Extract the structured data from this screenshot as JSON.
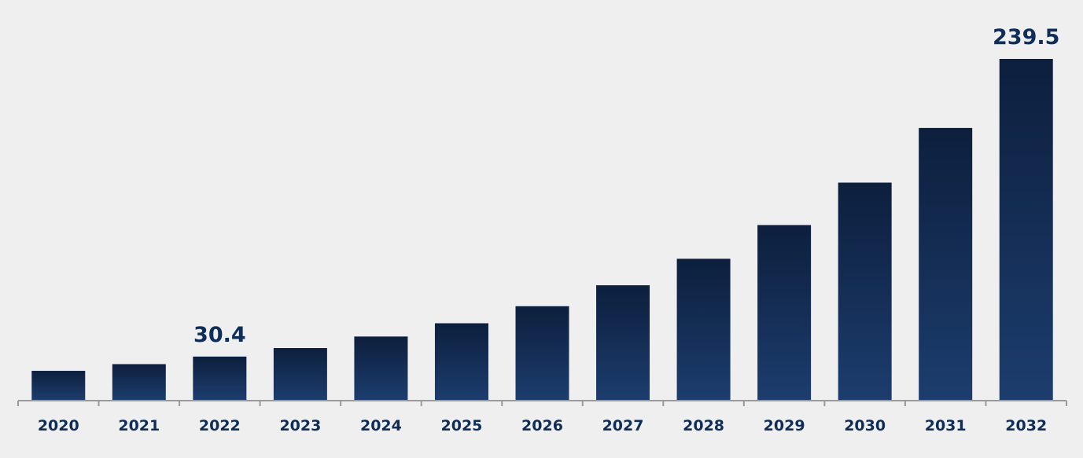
{
  "colors": {
    "background": "#efefef",
    "bar_top": "#0d1f3d",
    "bar_bottom": "#1c3d6e",
    "axis": "#9a9a9a",
    "label": "#0f2d59"
  },
  "chart_data": {
    "type": "bar",
    "categories": [
      "2020",
      "2021",
      "2022",
      "2023",
      "2024",
      "2025",
      "2026",
      "2027",
      "2028",
      "2029",
      "2030",
      "2031",
      "2032"
    ],
    "values": [
      20.4,
      25.1,
      30.4,
      36.4,
      44.5,
      53.8,
      65.8,
      80.5,
      99.1,
      122.8,
      152.6,
      191.0,
      239.5
    ],
    "data_labels": [
      {
        "index": 2,
        "text": "30.4"
      },
      {
        "index": 12,
        "text": "239.5"
      }
    ],
    "title": "",
    "xlabel": "",
    "ylabel": "",
    "ylim": [
      0,
      239.5
    ],
    "grid": false,
    "legend": "none"
  }
}
